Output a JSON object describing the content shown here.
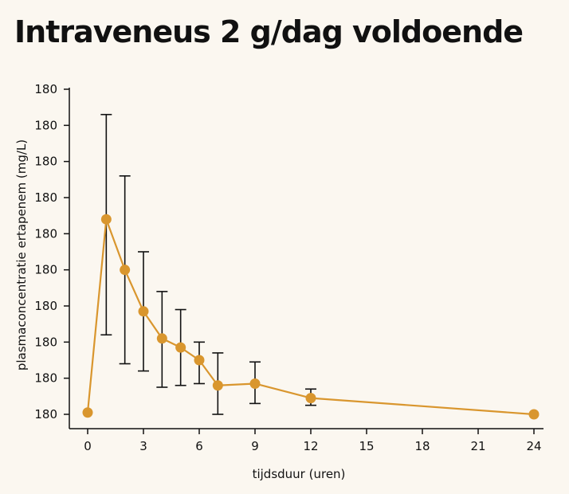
{
  "title": "Intraveneus 2 g/dag voldoende",
  "chart_data": {
    "type": "line",
    "title": "Intraveneus 2 g/dag voldoende",
    "xlabel": "tijdsduur (uren)",
    "ylabel": "plasmaconcentratie ertapenem (mg/L)",
    "x_ticks": [
      0,
      3,
      6,
      9,
      12,
      15,
      18,
      21,
      24
    ],
    "y_tick_labels": [
      "180",
      "180",
      "180",
      "180",
      "180",
      "180",
      "180",
      "180",
      "180",
      "180"
    ],
    "xlim": [
      0,
      24
    ],
    "ylim": [
      0,
      9
    ],
    "grid": false,
    "line_color": "#d9962e",
    "errorbar_color": "#111111",
    "series": [
      {
        "x": [
          0,
          1,
          2,
          3,
          4,
          5,
          6,
          7,
          9,
          12,
          24
        ],
        "y": [
          0.05,
          5.4,
          4.0,
          2.85,
          2.1,
          1.85,
          1.5,
          0.8,
          0.85,
          0.45,
          0.0
        ],
        "err_low": [
          null,
          2.2,
          1.4,
          1.2,
          0.75,
          0.8,
          0.85,
          0.0,
          0.3,
          0.25,
          null
        ],
        "err_high": [
          null,
          8.3,
          6.6,
          4.5,
          3.4,
          2.9,
          2.0,
          1.7,
          1.45,
          0.7,
          null
        ]
      }
    ]
  }
}
